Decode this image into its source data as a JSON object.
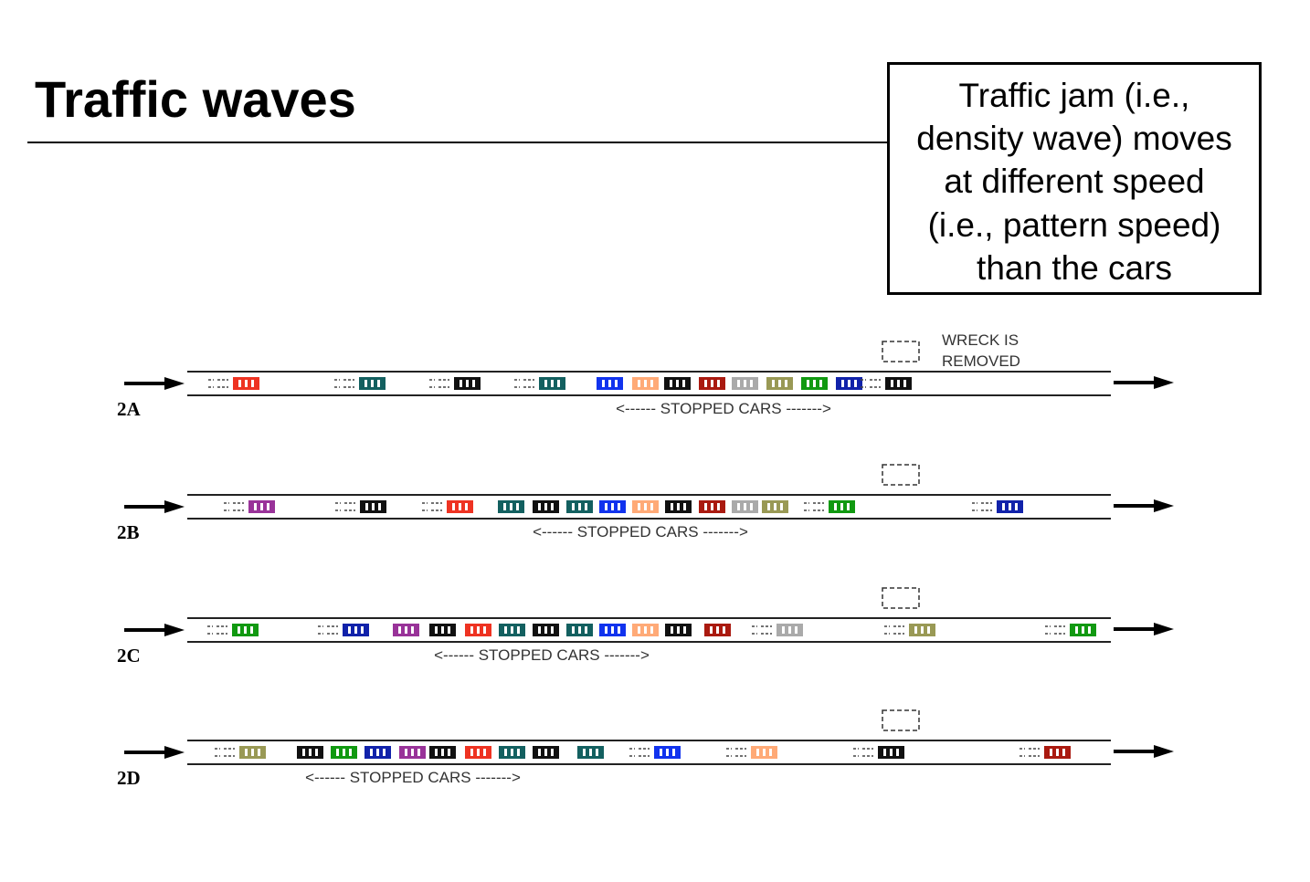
{
  "title": "Traffic waves",
  "callout": {
    "lines": [
      "Traffic jam (i.e.,",
      "density wave) moves",
      "at different speed",
      "(i.e., pattern speed)",
      "than the cars"
    ]
  },
  "wreck_text": [
    "WRECK IS",
    "REMOVED"
  ],
  "colors": {
    "red": "#ee3322",
    "teal": "#136060",
    "black": "#111111",
    "blue": "#1133ee",
    "orange": "#ffaa77",
    "maroon": "#aa1a10",
    "gray": "#aaaaaa",
    "olive": "#999955",
    "green": "#119911",
    "navy": "#1122aa",
    "purple": "#993399"
  },
  "rows": [
    {
      "label": "2A",
      "stopped_text": "<------ STOPPED CARS ------->",
      "cars": [
        {
          "color": "red",
          "motion": true
        },
        {
          "color": "teal",
          "motion": true
        },
        {
          "color": "black",
          "motion": true
        },
        {
          "color": "teal",
          "motion": true
        },
        {
          "color": "blue",
          "motion": false
        },
        {
          "color": "orange",
          "motion": false
        },
        {
          "color": "black",
          "motion": false
        },
        {
          "color": "maroon",
          "motion": false
        },
        {
          "color": "gray",
          "motion": false
        },
        {
          "color": "olive",
          "motion": false
        },
        {
          "color": "green",
          "motion": false
        },
        {
          "color": "navy",
          "motion": false
        },
        {
          "color": "black",
          "motion": true
        }
      ]
    },
    {
      "label": "2B",
      "stopped_text": "<------ STOPPED CARS ------->",
      "cars": [
        {
          "color": "purple",
          "motion": true
        },
        {
          "color": "black",
          "motion": true
        },
        {
          "color": "red",
          "motion": true
        },
        {
          "color": "teal",
          "motion": false
        },
        {
          "color": "black",
          "motion": false
        },
        {
          "color": "teal",
          "motion": false
        },
        {
          "color": "blue",
          "motion": false
        },
        {
          "color": "orange",
          "motion": false
        },
        {
          "color": "black",
          "motion": false
        },
        {
          "color": "maroon",
          "motion": false
        },
        {
          "color": "gray",
          "motion": false
        },
        {
          "color": "olive",
          "motion": false
        },
        {
          "color": "green",
          "motion": true
        },
        {
          "color": "navy",
          "motion": true
        }
      ]
    },
    {
      "label": "2C",
      "stopped_text": "<------ STOPPED CARS ------->",
      "cars": [
        {
          "color": "green",
          "motion": true
        },
        {
          "color": "navy",
          "motion": true
        },
        {
          "color": "purple",
          "motion": false
        },
        {
          "color": "black",
          "motion": false
        },
        {
          "color": "red",
          "motion": false
        },
        {
          "color": "teal",
          "motion": false
        },
        {
          "color": "black",
          "motion": false
        },
        {
          "color": "teal",
          "motion": false
        },
        {
          "color": "blue",
          "motion": false
        },
        {
          "color": "orange",
          "motion": false
        },
        {
          "color": "black",
          "motion": false
        },
        {
          "color": "maroon",
          "motion": false
        },
        {
          "color": "gray",
          "motion": true
        },
        {
          "color": "olive",
          "motion": true
        },
        {
          "color": "green",
          "motion": true
        }
      ]
    },
    {
      "label": "2D",
      "stopped_text": "<------ STOPPED CARS ------->",
      "cars": [
        {
          "color": "olive",
          "motion": true
        },
        {
          "color": "black",
          "motion": false
        },
        {
          "color": "green",
          "motion": false
        },
        {
          "color": "navy",
          "motion": false
        },
        {
          "color": "purple",
          "motion": false
        },
        {
          "color": "black",
          "motion": false
        },
        {
          "color": "red",
          "motion": false
        },
        {
          "color": "teal",
          "motion": false
        },
        {
          "color": "black",
          "motion": false
        },
        {
          "color": "teal",
          "motion": false
        },
        {
          "color": "blue",
          "motion": true
        },
        {
          "color": "orange",
          "motion": true
        },
        {
          "color": "black",
          "motion": true
        },
        {
          "color": "maroon",
          "motion": true
        }
      ]
    }
  ]
}
